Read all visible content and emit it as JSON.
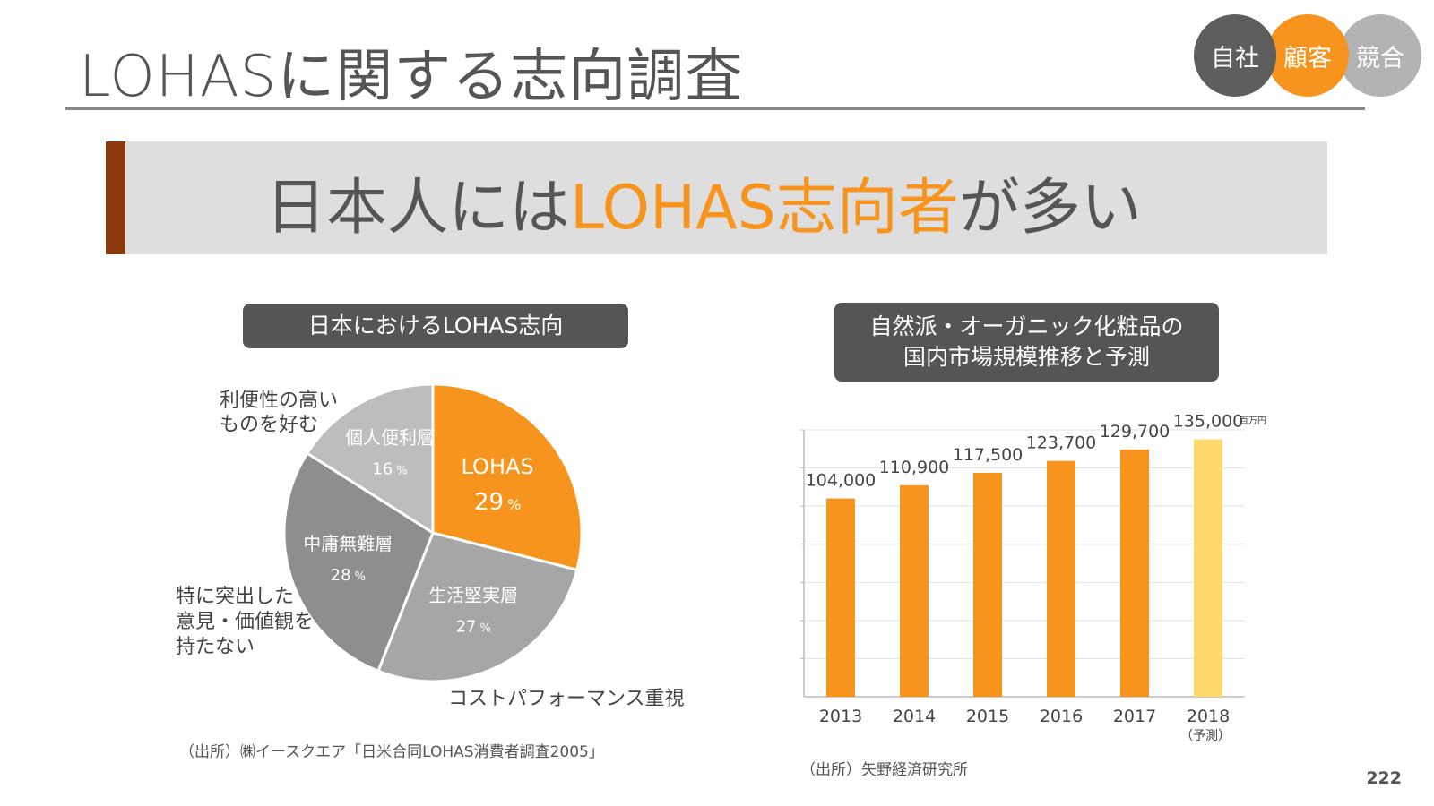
{
  "header": {
    "title": "LOHASに関する志向調査",
    "circles": [
      "自社",
      "顧客",
      "競合"
    ]
  },
  "banner": {
    "text_before": "日本人には",
    "text_highlight": "LOHAS志向者",
    "text_after": "が多い"
  },
  "colors": {
    "accent": "#f7941d",
    "banner_bar": "#8b3a10",
    "forecast_bar": "#ffd86b",
    "pie_gray_dark": "#8e8e8e",
    "pie_gray_mid": "#a6a6a6",
    "pie_gray_light": "#bdbdbd"
  },
  "left_chart": {
    "label": "日本におけるLOHAS志向",
    "outer_labels": {
      "top_left": [
        "利便性の高い",
        "ものを好む"
      ],
      "left": [
        "特に突出した",
        "意見・価値観を",
        "持たない"
      ],
      "bottom": "コストパフォーマンス重視"
    },
    "source": "（出所）㈱イースクエア「日米合同LOHAS消費者調査2005」"
  },
  "right_chart": {
    "label_lines": [
      "自然派・オーガニック化粧品の",
      "国内市場規模推移と予測"
    ],
    "unit": "百万円",
    "forecast_note": "（予測）",
    "source": "（出所）矢野経済研究所"
  },
  "chart_data": [
    {
      "type": "pie",
      "title": "日本におけるLOHAS志向",
      "slices": [
        {
          "label": "LOHAS",
          "value": 29,
          "unit": "%"
        },
        {
          "label": "生活堅実層",
          "value": 27,
          "unit": "%"
        },
        {
          "label": "中庸無難層",
          "value": 28,
          "unit": "%"
        },
        {
          "label": "個人便利層",
          "value": 16,
          "unit": "%"
        }
      ]
    },
    {
      "type": "bar",
      "title": "自然派・オーガニック化粧品の国内市場規模推移と予測",
      "categories": [
        "2013",
        "2014",
        "2015",
        "2016",
        "2017",
        "2018"
      ],
      "values": [
        104000,
        110900,
        117500,
        123700,
        129700,
        135000
      ],
      "value_labels": [
        "104,000",
        "110,900",
        "117,500",
        "123,700",
        "129,700",
        "135,000"
      ],
      "forecast_index": 5,
      "unit": "百万円",
      "ylim": [
        0,
        140000
      ],
      "grid": true
    }
  ],
  "page_number": "222"
}
